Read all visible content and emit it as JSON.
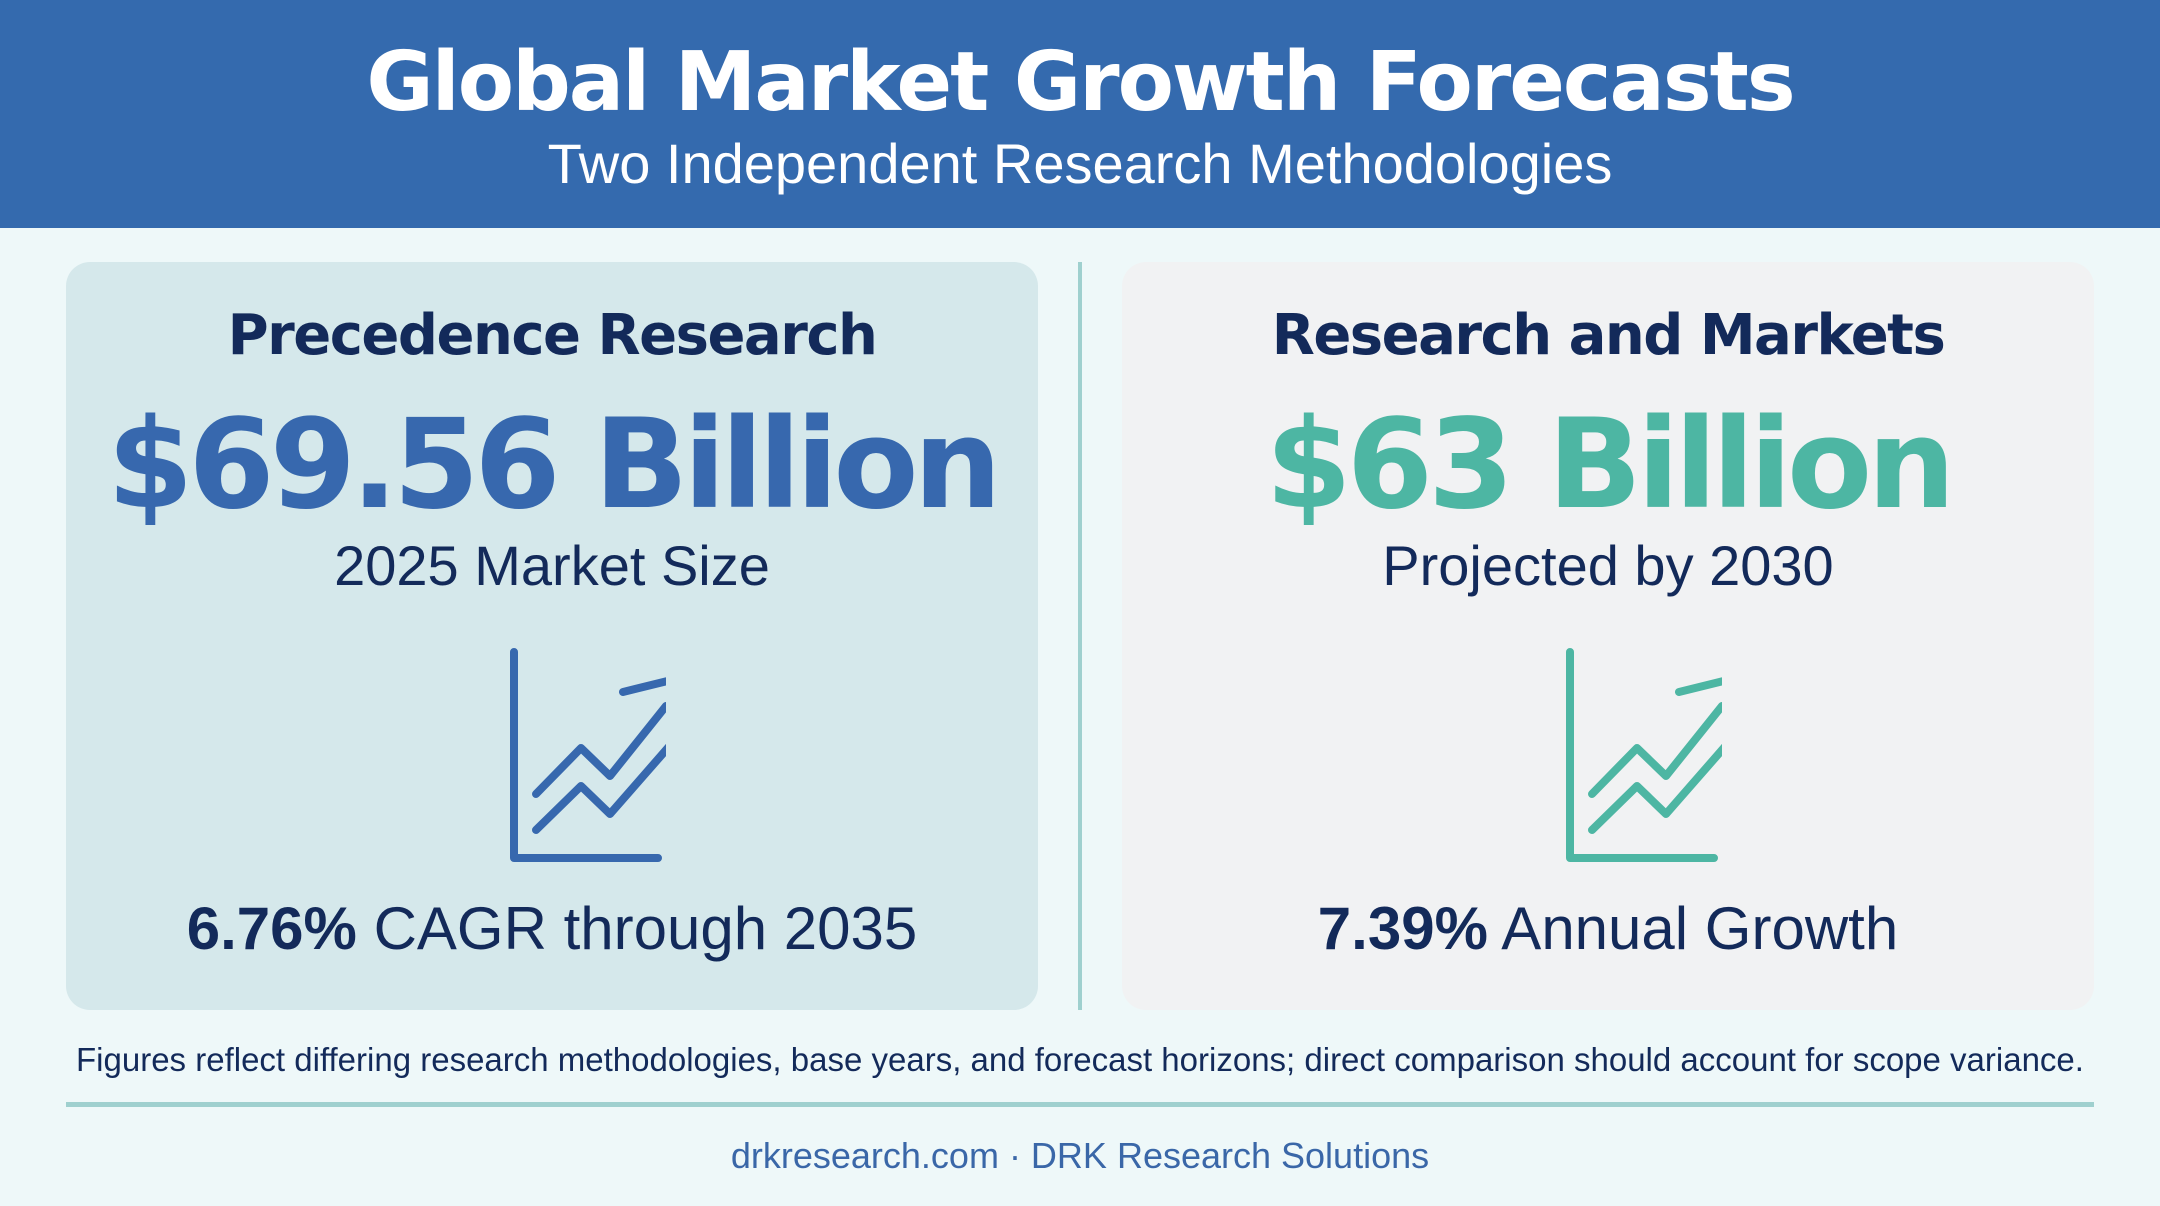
{
  "header": {
    "title": "Global Market Growth Forecasts",
    "subtitle": "Two Independent Research Methodologies"
  },
  "cards": [
    {
      "heading": "Precedence Research",
      "value": "$69.56 Billion",
      "caption": "2025 Market Size",
      "icon": "growth-chart-icon",
      "stat_value": "6.76%",
      "stat_text": "CAGR through 2035",
      "accent_color": "#3768ae",
      "background_color": "#d5e8eb"
    },
    {
      "heading": "Research and Markets",
      "value": "$63 Billion",
      "caption": "Projected by 2030",
      "icon": "growth-chart-icon",
      "stat_value": "7.39%",
      "stat_text": "Annual Growth",
      "accent_color": "#4db6a3",
      "background_color": "#f1f2f3"
    }
  ],
  "footnote": "Figures reflect differing research methodologies, base years, and forecast horizons; direct comparison should account for scope variance.",
  "footer": {
    "brand": "drkresearch.com · DRK Research Solutions"
  },
  "colors": {
    "header_background": "#346aae",
    "page_background": "#eef8f9",
    "heading_text": "#132a5a",
    "divider": "#9fd0cf"
  }
}
